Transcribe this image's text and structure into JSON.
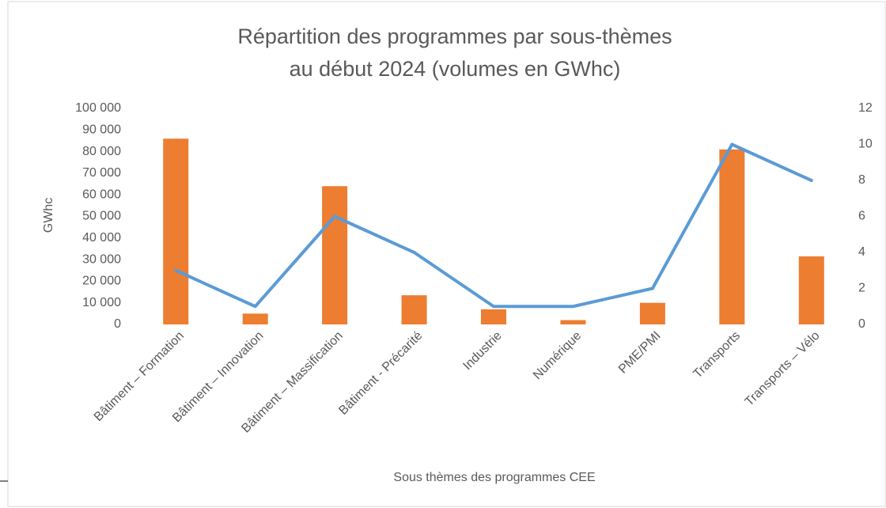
{
  "chart_data": {
    "type": "bar_line",
    "title": [
      "Répartition des programmes par sous-thèmes",
      "au début 2024 (volumes en GWhc)"
    ],
    "y_label": "GWhc",
    "x_label": "Sous thèmes des programmes CEE",
    "categories": [
      "Bâtiment – Formation",
      "Bâtiment – Innovation",
      "Bâtiment – Massification",
      "Bâtiment - Précarité",
      "Industrie",
      "Numérique",
      "PME/PMI",
      "Transports",
      "Transports – Vélo"
    ],
    "series": [
      {
        "type": "bar",
        "color": "#ed7d31",
        "values": [
          86000,
          5000,
          64000,
          13500,
          7000,
          2000,
          10000,
          81000,
          31500
        ]
      },
      {
        "type": "line",
        "axis": "y2",
        "color": "#5b9bd5",
        "values": [
          3,
          1,
          6,
          4,
          1,
          1,
          2,
          10,
          8
        ]
      }
    ],
    "ylim": [
      0,
      100000
    ],
    "yticks": [
      0,
      {
        "value": 10000,
        "label": "10 000"
      },
      {
        "value": 20000,
        "label": "20 000"
      },
      {
        "value": 30000,
        "label": "30 000"
      },
      {
        "value": 40000,
        "label": "40 000"
      },
      {
        "value": 50000,
        "label": "50 000"
      },
      {
        "value": 60000,
        "label": "60 000"
      },
      {
        "value": 70000,
        "label": "70 000"
      },
      {
        "value": 80000,
        "label": "80 000"
      },
      {
        "value": 90000,
        "label": "90 000"
      },
      {
        "value": 100000,
        "label": "100 000"
      }
    ],
    "y2lim": [
      0,
      12
    ],
    "y2ticks": [
      0,
      2,
      4,
      6,
      8,
      10,
      12
    ],
    "grid": false
  }
}
